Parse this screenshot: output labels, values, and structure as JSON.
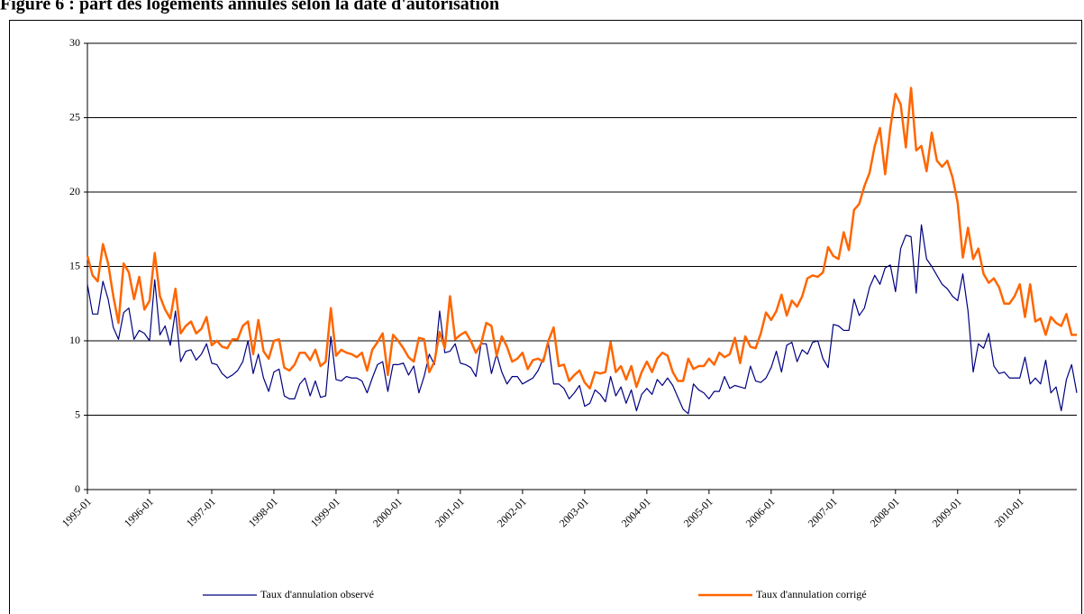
{
  "chart_data": {
    "type": "line",
    "title": "Figure 6 : part des logements annulés selon la date d'autorisation",
    "categories": [
      "1995-01",
      null,
      null,
      null,
      null,
      null,
      null,
      null,
      null,
      null,
      null,
      null,
      "1996-01",
      null,
      null,
      null,
      null,
      null,
      null,
      null,
      null,
      null,
      null,
      null,
      "1997-01",
      null,
      null,
      null,
      null,
      null,
      null,
      null,
      null,
      null,
      null,
      null,
      "1998-01",
      null,
      null,
      null,
      null,
      null,
      null,
      null,
      null,
      null,
      null,
      null,
      "1999-01",
      null,
      null,
      null,
      null,
      null,
      null,
      null,
      null,
      null,
      null,
      null,
      "2000-01",
      null,
      null,
      null,
      null,
      null,
      null,
      null,
      null,
      null,
      null,
      null,
      "2001-01",
      null,
      null,
      null,
      null,
      null,
      null,
      null,
      null,
      null,
      null,
      null,
      "2002-01",
      null,
      null,
      null,
      null,
      null,
      null,
      null,
      null,
      null,
      null,
      null,
      "2003-01",
      null,
      null,
      null,
      null,
      null,
      null,
      null,
      null,
      null,
      null,
      null,
      "2004-01",
      null,
      null,
      null,
      null,
      null,
      null,
      null,
      null,
      null,
      null,
      null,
      "2005-01",
      null,
      null,
      null,
      null,
      null,
      null,
      null,
      null,
      null,
      null,
      null,
      "2006-01",
      null,
      null,
      null,
      null,
      null,
      null,
      null,
      null,
      null,
      null,
      null,
      "2007-01",
      null,
      null,
      null,
      null,
      null,
      null,
      null,
      null,
      null,
      null,
      null,
      "2008-01",
      null,
      null,
      null,
      null,
      null,
      null,
      null,
      null,
      null,
      null,
      null,
      "2009-01",
      null,
      null,
      null,
      null,
      null,
      null,
      null,
      null,
      null,
      null,
      null,
      "2010-01",
      null,
      null,
      null,
      null,
      null,
      null,
      null,
      null,
      null,
      null,
      null
    ],
    "series": [
      {
        "name": "Taux d'annulation observé",
        "color": "#000080",
        "values": [
          13.8,
          11.8,
          11.8,
          14.0,
          12.8,
          10.9,
          10.1,
          11.9,
          12.2,
          10.1,
          10.7,
          10.5,
          10.0,
          14.1,
          10.4,
          11.0,
          9.7,
          12.0,
          8.6,
          9.3,
          9.4,
          8.7,
          9.1,
          9.8,
          8.5,
          8.4,
          7.8,
          7.5,
          7.7,
          8.0,
          8.6,
          10.0,
          7.8,
          9.1,
          7.5,
          6.6,
          7.9,
          8.1,
          6.3,
          6.1,
          6.1,
          7.1,
          7.5,
          6.3,
          7.3,
          6.2,
          6.3,
          10.3,
          7.4,
          7.3,
          7.6,
          7.5,
          7.5,
          7.3,
          6.5,
          7.5,
          8.4,
          8.6,
          6.6,
          8.4,
          8.4,
          8.5,
          7.7,
          8.3,
          6.5,
          7.6,
          9.1,
          8.4,
          12.0,
          9.2,
          9.3,
          9.8,
          8.5,
          8.4,
          8.2,
          7.6,
          9.8,
          9.8,
          7.8,
          9.1,
          7.9,
          7.1,
          7.6,
          7.6,
          7.1,
          7.3,
          7.5,
          8.0,
          8.8,
          9.8,
          7.1,
          7.1,
          6.8,
          6.1,
          6.5,
          7.0,
          5.6,
          5.8,
          6.7,
          6.4,
          5.9,
          7.6,
          6.3,
          6.9,
          5.8,
          6.7,
          5.3,
          6.4,
          6.8,
          6.4,
          7.4,
          7.0,
          7.5,
          7.0,
          6.2,
          5.4,
          5.1,
          7.1,
          6.7,
          6.5,
          6.1,
          6.6,
          6.6,
          7.6,
          6.8,
          7.0,
          6.9,
          6.8,
          8.3,
          7.3,
          7.2,
          7.5,
          8.2,
          9.3,
          7.9,
          9.7,
          9.9,
          8.6,
          9.4,
          9.1,
          9.9,
          10.0,
          8.8,
          8.2,
          11.1,
          11.0,
          10.7,
          10.7,
          12.8,
          11.7,
          12.2,
          13.6,
          14.4,
          13.8,
          14.9,
          15.1,
          13.3,
          16.2,
          17.1,
          17.0,
          13.2,
          17.8,
          15.5,
          15.0,
          14.4,
          13.8,
          13.5,
          13.0,
          12.7,
          14.5,
          12.0,
          7.9,
          9.8,
          9.5,
          10.5,
          8.3,
          7.8,
          7.9,
          7.5,
          7.5,
          7.5,
          8.9,
          7.1,
          7.5,
          7.1,
          8.7,
          6.5,
          6.9,
          5.3,
          7.4,
          8.4,
          6.5
        ]
      },
      {
        "name": "Taux d'annulation corrigé",
        "color": "#ff6600",
        "values": [
          15.7,
          14.4,
          14.0,
          16.5,
          15.2,
          13.0,
          11.2,
          15.2,
          14.6,
          12.8,
          14.3,
          12.1,
          12.7,
          15.9,
          13.0,
          12.1,
          11.5,
          13.5,
          10.5,
          11.0,
          11.3,
          10.5,
          10.8,
          11.6,
          9.7,
          10.0,
          9.6,
          9.5,
          10.1,
          10.1,
          11.0,
          11.3,
          9.1,
          11.4,
          9.3,
          8.8,
          10.0,
          10.1,
          8.2,
          8.0,
          8.4,
          9.2,
          9.2,
          8.7,
          9.4,
          8.3,
          8.6,
          12.2,
          9.0,
          9.4,
          9.2,
          9.1,
          8.9,
          9.2,
          8.0,
          9.4,
          9.9,
          10.5,
          7.7,
          10.4,
          10.0,
          9.5,
          8.9,
          8.6,
          10.2,
          10.1,
          7.9,
          8.6,
          10.6,
          9.5,
          13.0,
          10.1,
          10.4,
          10.6,
          10.0,
          9.2,
          9.8,
          11.2,
          11.0,
          9.0,
          10.3,
          9.6,
          8.6,
          8.8,
          9.2,
          8.1,
          8.7,
          8.8,
          8.6,
          10.0,
          10.9,
          8.3,
          8.4,
          7.3,
          7.7,
          8.0,
          7.2,
          6.8,
          7.9,
          7.8,
          7.9,
          9.9,
          7.9,
          8.3,
          7.4,
          8.3,
          6.9,
          7.9,
          8.6,
          7.9,
          8.8,
          9.2,
          9.0,
          7.9,
          7.3,
          7.3,
          8.8,
          8.1,
          8.3,
          8.3,
          8.8,
          8.4,
          9.2,
          8.9,
          9.1,
          10.2,
          8.5,
          10.3,
          9.6,
          9.5,
          10.5,
          11.9,
          11.4,
          12.0,
          13.1,
          11.7,
          12.7,
          12.3,
          13.0,
          14.2,
          14.4,
          14.3,
          14.6,
          16.3,
          15.7,
          15.5,
          17.3,
          16.1,
          18.8,
          19.2,
          20.4,
          21.3,
          23.1,
          24.3,
          21.2,
          24.3,
          26.6,
          25.9,
          23.0,
          27.0,
          22.8,
          23.1,
          21.4,
          24.0,
          22.1,
          21.7,
          22.1,
          21.0,
          19.3,
          15.6,
          17.6,
          15.5,
          16.2,
          14.5,
          13.9,
          14.2,
          13.6,
          12.5,
          12.5,
          13.0,
          13.8,
          11.6,
          13.8,
          11.3,
          11.5,
          10.4,
          11.6,
          11.2,
          11.0,
          11.8,
          10.4,
          10.4
        ]
      }
    ],
    "ylim": [
      0,
      30
    ],
    "yticks": [
      0,
      5,
      10,
      15,
      20,
      25,
      30
    ],
    "grid": true
  }
}
